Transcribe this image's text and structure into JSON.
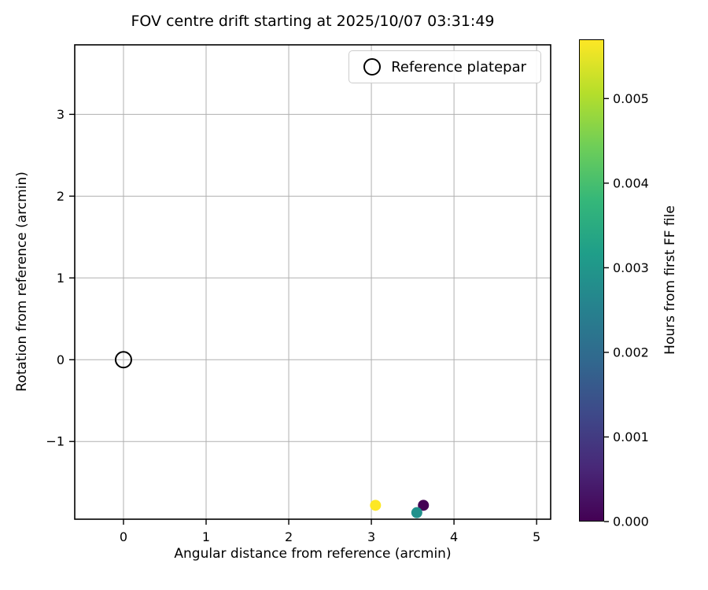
{
  "chart_data": {
    "type": "scatter",
    "title": "FOV centre drift starting at 2025/10/07 03:31:49",
    "xlabel": "Angular distance from reference (arcmin)",
    "ylabel": "Rotation from reference (arcmin)",
    "grid": true,
    "grid_color": "#b0b0b0",
    "xlim": [
      -0.59,
      5.17
    ],
    "ylim": [
      -1.95,
      3.85
    ],
    "xticks": [
      0,
      1,
      2,
      3,
      4,
      5
    ],
    "yticks": [
      -1,
      0,
      1,
      2,
      3
    ],
    "legend": {
      "position": "upper right",
      "entries": [
        "Reference platepar"
      ]
    },
    "reference_point": {
      "x": 0.0,
      "y": 0.0,
      "label": "Reference platepar"
    },
    "points": [
      {
        "x": 3.63,
        "y": -1.78,
        "hours": 0.0,
        "color": "#440154"
      },
      {
        "x": 3.55,
        "y": -1.87,
        "hours": 0.0029,
        "color": "#21918c"
      },
      {
        "x": 3.05,
        "y": -1.78,
        "hours": 0.0057,
        "color": "#fde725"
      }
    ],
    "colorbar": {
      "label": "Hours from first FF file",
      "colormap": "viridis",
      "vmin": 0.0,
      "vmax": 0.0057,
      "ticks": [
        {
          "value": 0.0,
          "label": "0.000"
        },
        {
          "value": 0.001,
          "label": "0.001"
        },
        {
          "value": 0.002,
          "label": "0.002"
        },
        {
          "value": 0.003,
          "label": "0.003"
        },
        {
          "value": 0.004,
          "label": "0.004"
        },
        {
          "value": 0.005,
          "label": "0.005"
        }
      ],
      "gradient_stops": [
        "#440154",
        "#482878",
        "#3e4989",
        "#31688e",
        "#26828e",
        "#1f9e89",
        "#35b779",
        "#6ece58",
        "#b5de2b",
        "#fde725"
      ]
    }
  }
}
